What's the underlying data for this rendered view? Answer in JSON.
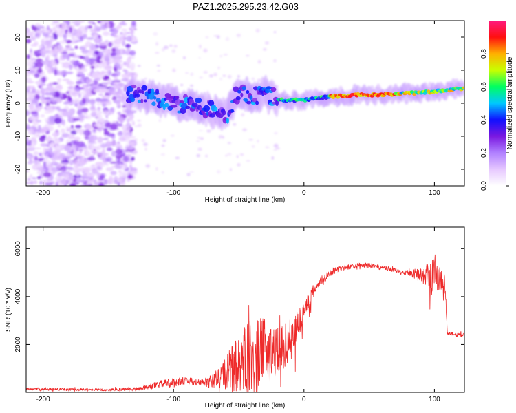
{
  "title": "PAZ1.2025.295.23.42.G03",
  "chart_data": [
    {
      "type": "heatmap",
      "name": "spectrogram",
      "xlabel": "Height of straight line (km)",
      "ylabel": "Frequency (Hz)",
      "xlim": [
        -213,
        123
      ],
      "ylim": [
        -25,
        25
      ],
      "xticks": [
        -200,
        -100,
        0,
        100
      ],
      "yticks": [
        -20,
        -10,
        0,
        10,
        20
      ],
      "colorbar": {
        "label": "Normalized spectral amplitude",
        "range": [
          0,
          1
        ],
        "ticks": [
          "0.0",
          "0.2",
          "0.4",
          "0.6",
          "0.8"
        ],
        "tick_values": [
          0,
          0.2,
          0.4,
          0.6,
          0.8
        ],
        "colors": [
          "#ffffff",
          "#e6c8ff",
          "#b080ff",
          "#7a18e0",
          "#1010ff",
          "#00c8ff",
          "#00ff60",
          "#c8ff00",
          "#ffb000",
          "#ff1010",
          "#ff1a80"
        ]
      },
      "ridge": {
        "description_points_x": [
          -135,
          -120,
          -100,
          -80,
          -60,
          -50,
          -40,
          -30,
          -20,
          -10,
          0,
          20,
          40,
          60,
          80,
          100,
          123
        ],
        "description_points_freq": [
          3,
          2,
          0,
          -1,
          -4,
          4,
          2,
          3,
          1,
          1,
          1,
          2,
          2.5,
          2.5,
          3,
          3.5,
          4.5
        ]
      },
      "noise_region_x": [
        -213,
        -130
      ]
    },
    {
      "type": "line",
      "name": "snr",
      "xlabel": "Height of straight line (km)",
      "ylabel": "SNR (10 * v/v)",
      "xlim": [
        -213,
        123
      ],
      "ylim": [
        0,
        6900
      ],
      "xticks": [
        -200,
        -100,
        0,
        100
      ],
      "yticks": [
        2000,
        4000,
        6000
      ],
      "color": "#ee2a2a",
      "series": [
        {
          "name": "SNR",
          "x": [
            -213,
            -180,
            -150,
            -125,
            -110,
            -100,
            -90,
            -80,
            -70,
            -60,
            -50,
            -40,
            -30,
            -20,
            -10,
            0,
            10,
            20,
            30,
            40,
            50,
            60,
            70,
            80,
            90,
            95,
            100,
            105,
            108,
            110,
            115,
            123
          ],
          "y": [
            150,
            120,
            100,
            150,
            350,
            400,
            500,
            400,
            450,
            800,
            1200,
            1500,
            1800,
            1700,
            2200,
            3400,
            4500,
            5000,
            5200,
            5300,
            5300,
            5200,
            5100,
            5000,
            4900,
            4800,
            5000,
            4700,
            4600,
            2500,
            2400,
            2400
          ],
          "amplitude": [
            50,
            50,
            50,
            80,
            150,
            200,
            150,
            150,
            300,
            700,
            1300,
            1600,
            1300,
            1000,
            900,
            500,
            250,
            150,
            120,
            100,
            100,
            100,
            100,
            120,
            300,
            600,
            900,
            600,
            300,
            100,
            80,
            80
          ]
        }
      ]
    }
  ]
}
